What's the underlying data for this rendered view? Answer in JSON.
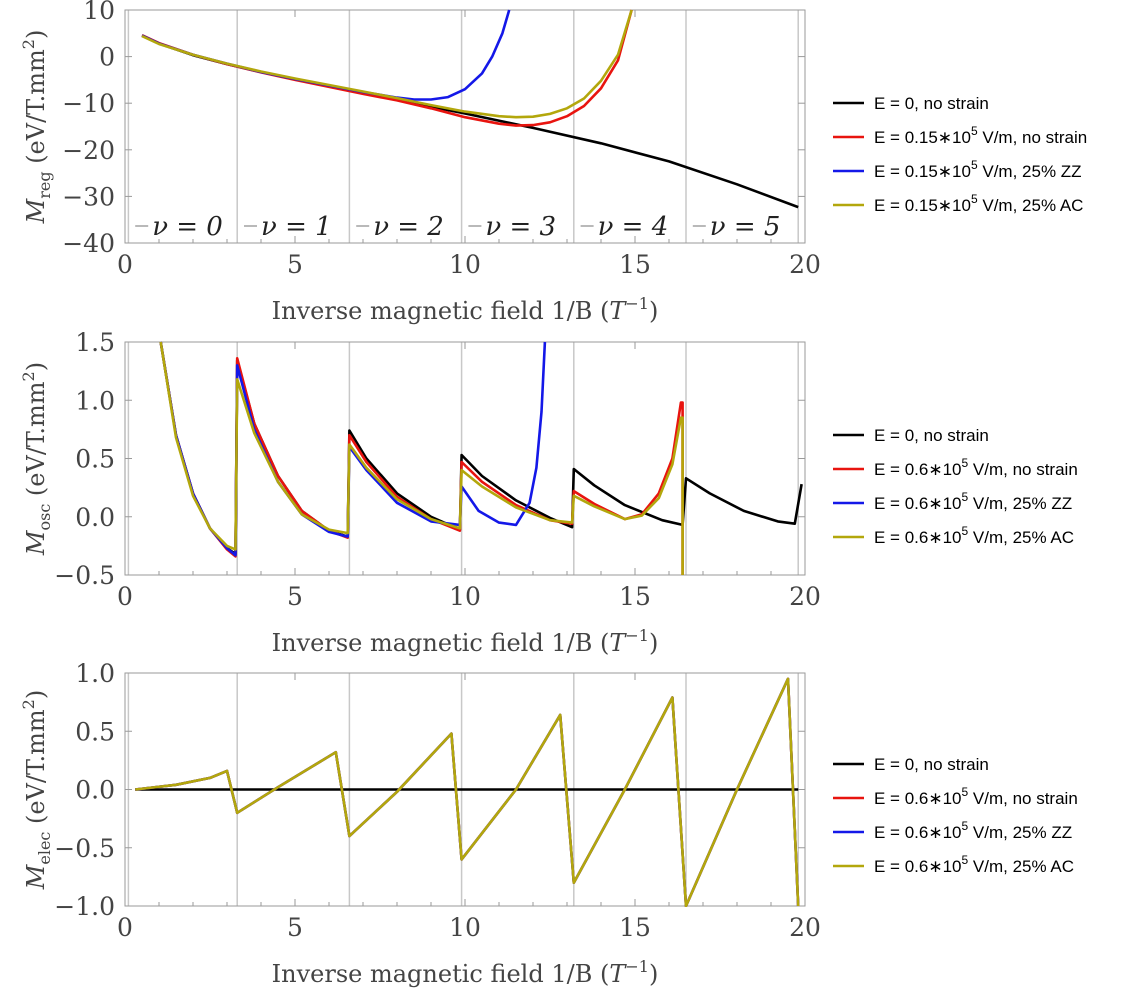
{
  "chart_data": [
    {
      "type": "line",
      "panel": "top",
      "xlabel": "Inverse magnetic field 1/B (",
      "xlabel_sym": "T",
      "xlabel_sup": "−1",
      "xlabel_close": ")",
      "ylabel_sym": "M",
      "ylabel_sub": "reg",
      "ylabel_unit": "(eV/T.mm",
      "ylabel_sup": "2",
      "ylabel_close": ")",
      "xlim": [
        0,
        20
      ],
      "ylim": [
        -40,
        10
      ],
      "xticks": [
        "0",
        "5",
        "10",
        "15",
        "20"
      ],
      "yticks": [
        "10",
        "0",
        "−10",
        "−20",
        "−30",
        "−40"
      ],
      "ytick_values": [
        10,
        0,
        -10,
        -20,
        -30,
        -40
      ],
      "xtick_values": [
        0,
        5,
        10,
        15,
        20
      ],
      "vlines": [
        0.1,
        3.3,
        6.6,
        9.9,
        13.2,
        16.5,
        19.8
      ],
      "nu_labels": [
        {
          "text": "ν = 0",
          "x": 0.3
        },
        {
          "text": "ν = 1",
          "x": 3.5
        },
        {
          "text": "ν = 2",
          "x": 6.8
        },
        {
          "text": "ν = 3",
          "x": 10.1
        },
        {
          "text": "ν = 4",
          "x": 13.4
        },
        {
          "text": "ν = 5",
          "x": 16.7
        }
      ],
      "legend": {
        "placement": "right",
        "entries": [
          {
            "pre": "E = 0, no strain",
            "sup": "",
            "post": "",
            "color": "#000000"
          },
          {
            "pre": "E = 0.15∗10",
            "sup": "5",
            "post": " V/m, no strain",
            "color": "#e8140f"
          },
          {
            "pre": "E = 0.15∗10",
            "sup": "5",
            "post": " V/m, 25% ZZ",
            "color": "#1418e8"
          },
          {
            "pre": "E = 0.15∗10",
            "sup": "5",
            "post": " V/m, 25% AC",
            "color": "#b3a70c"
          }
        ]
      },
      "series": [
        {
          "color": "#000000",
          "x": [
            0.5,
            1,
            2,
            3,
            4,
            5,
            6,
            8,
            10,
            12,
            14,
            16,
            18,
            19.8
          ],
          "y": [
            4.5,
            2.8,
            0.3,
            -1.6,
            -3.3,
            -4.8,
            -6.3,
            -9.3,
            -12.2,
            -15.3,
            -18.6,
            -22.5,
            -27.4,
            -32.3
          ]
        },
        {
          "color": "#e8140f",
          "x": [
            0.5,
            1,
            2,
            3,
            4,
            5,
            6,
            7,
            8,
            9,
            10,
            11,
            11.5,
            12,
            12.5,
            13,
            13.5,
            14,
            14.5,
            14.9
          ],
          "y": [
            4.6,
            2.9,
            0.4,
            -1.6,
            -3.4,
            -5,
            -6.5,
            -8,
            -9.4,
            -11.1,
            -13,
            -14.4,
            -14.8,
            -14.7,
            -14.1,
            -12.8,
            -10.6,
            -6.8,
            -0.8,
            10
          ]
        },
        {
          "color": "#1418e8",
          "x": [
            0.5,
            1,
            2,
            3,
            4,
            5,
            6,
            7,
            8,
            8.5,
            9,
            9.5,
            10,
            10.5,
            10.8,
            11.1,
            11.3
          ],
          "y": [
            4.5,
            2.8,
            0.4,
            -1.5,
            -3.3,
            -4.8,
            -6.2,
            -7.6,
            -8.8,
            -9.2,
            -9.2,
            -8.7,
            -7,
            -3.6,
            0,
            5,
            10
          ]
        },
        {
          "color": "#b3a70c",
          "x": [
            0.5,
            1,
            2,
            3,
            4,
            5,
            6,
            7,
            8,
            9,
            10,
            11,
            11.5,
            12,
            12.5,
            13,
            13.5,
            14,
            14.5,
            14.9
          ],
          "y": [
            4.4,
            2.7,
            0.4,
            -1.5,
            -3.2,
            -4.7,
            -6.1,
            -7.5,
            -8.9,
            -10.4,
            -11.8,
            -12.8,
            -13,
            -12.9,
            -12.3,
            -11.1,
            -9,
            -5.2,
            0.4,
            10
          ]
        }
      ]
    },
    {
      "type": "line",
      "panel": "middle",
      "xlabel": "Inverse magnetic field 1/B (",
      "xlabel_sym": "T",
      "xlabel_sup": "−1",
      "xlabel_close": ")",
      "ylabel_sym": "M",
      "ylabel_sub": "osc",
      "ylabel_unit": "(eV/T.mm",
      "ylabel_sup": "2",
      "ylabel_close": ")",
      "xlim": [
        0,
        20
      ],
      "ylim": [
        -0.5,
        1.5
      ],
      "xticks": [
        "0",
        "5",
        "10",
        "15",
        "20"
      ],
      "yticks": [
        "1.5",
        "1.0",
        "0.5",
        "0.0",
        "−0.5"
      ],
      "ytick_values": [
        1.5,
        1.0,
        0.5,
        0.0,
        -0.5
      ],
      "xtick_values": [
        0,
        5,
        10,
        15,
        20
      ],
      "vlines": [
        0.1,
        3.3,
        6.6,
        9.9,
        13.2,
        16.5,
        19.8
      ],
      "legend": {
        "placement": "right",
        "entries": [
          {
            "pre": "E = 0, no strain",
            "sup": "",
            "post": "",
            "color": "#000000"
          },
          {
            "pre": "E = 0.6∗10",
            "sup": "5",
            "post": " V/m, no strain",
            "color": "#e8140f"
          },
          {
            "pre": "E = 0.6∗10",
            "sup": "5",
            "post": " V/m, 25% ZZ",
            "color": "#1418e8"
          },
          {
            "pre": "E = 0.6∗10",
            "sup": "5",
            "post": " V/m, 25% AC",
            "color": "#b3a70c"
          }
        ]
      },
      "series": [
        {
          "color": "#000000",
          "x": [
            1.05,
            1.5,
            2,
            2.5,
            3,
            3.25,
            3.3,
            3.8,
            4.5,
            5.2,
            6,
            6.55,
            6.6,
            7.1,
            8,
            9,
            9.85,
            9.9,
            10.5,
            11.5,
            12.5,
            13.15,
            13.2,
            13.8,
            14.7,
            15.8,
            16.4,
            16.5,
            17.2,
            18.2,
            19.2,
            19.7,
            19.9
          ],
          "y": [
            1.5,
            0.7,
            0.2,
            -0.1,
            -0.27,
            -0.32,
            1.34,
            0.8,
            0.35,
            0.05,
            -0.12,
            -0.17,
            0.74,
            0.5,
            0.2,
            0,
            -0.11,
            0.53,
            0.35,
            0.14,
            -0.01,
            -0.09,
            0.41,
            0.27,
            0.1,
            -0.03,
            -0.07,
            0.33,
            0.2,
            0.05,
            -0.04,
            -0.06,
            0.28
          ]
        },
        {
          "color": "#e8140f",
          "x": [
            1.05,
            1.5,
            2,
            2.5,
            3,
            3.25,
            3.3,
            3.8,
            4.5,
            5.2,
            6,
            6.55,
            6.6,
            7.1,
            8,
            9,
            9.85,
            9.9,
            10.5,
            11.5,
            12.5,
            13.15,
            13.2,
            13.8,
            14.7,
            15.2,
            15.7,
            16.1,
            16.35,
            16.4,
            16.4
          ],
          "y": [
            1.5,
            0.7,
            0.2,
            -0.1,
            -0.28,
            -0.34,
            1.36,
            0.8,
            0.35,
            0.05,
            -0.12,
            -0.18,
            0.7,
            0.47,
            0.17,
            -0.02,
            -0.12,
            0.47,
            0.3,
            0.1,
            -0.03,
            -0.06,
            0.22,
            0.11,
            -0.02,
            0.02,
            0.2,
            0.5,
            0.98,
            0.98,
            -0.5
          ]
        },
        {
          "color": "#1418e8",
          "x": [
            1.05,
            1.5,
            2,
            2.5,
            3,
            3.25,
            3.3,
            3.8,
            4.5,
            5.2,
            6,
            6.55,
            6.6,
            7.1,
            8,
            9,
            9.85,
            9.9,
            10.4,
            11,
            11.5,
            11.9,
            12.1,
            12.25,
            12.35
          ],
          "y": [
            1.5,
            0.7,
            0.2,
            -0.1,
            -0.27,
            -0.33,
            1.3,
            0.75,
            0.3,
            0.02,
            -0.13,
            -0.17,
            0.6,
            0.4,
            0.12,
            -0.04,
            -0.07,
            0.26,
            0.05,
            -0.05,
            -0.07,
            0.12,
            0.42,
            0.9,
            1.5
          ]
        },
        {
          "color": "#b3a70c",
          "x": [
            1.05,
            1.5,
            2,
            2.5,
            3,
            3.25,
            3.3,
            3.8,
            4.5,
            5.2,
            6,
            6.55,
            6.6,
            7.1,
            8,
            9,
            9.85,
            9.9,
            10.5,
            11.5,
            12.5,
            13.15,
            13.2,
            13.8,
            14.7,
            15.2,
            15.7,
            16.1,
            16.35,
            16.4,
            16.4
          ],
          "y": [
            1.5,
            0.68,
            0.18,
            -0.1,
            -0.25,
            -0.28,
            1.18,
            0.72,
            0.3,
            0.02,
            -0.11,
            -0.14,
            0.62,
            0.42,
            0.15,
            -0.02,
            -0.1,
            0.4,
            0.26,
            0.08,
            -0.03,
            -0.05,
            0.18,
            0.09,
            -0.02,
            0.01,
            0.16,
            0.45,
            0.85,
            0.85,
            -0.5
          ]
        }
      ]
    },
    {
      "type": "line",
      "panel": "bottom",
      "xlabel": "Inverse magnetic field 1/B (",
      "xlabel_sym": "T",
      "xlabel_sup": "−1",
      "xlabel_close": ")",
      "ylabel_sym": "M",
      "ylabel_sub": "elec",
      "ylabel_unit": "(eV/T.mm",
      "ylabel_sup": "2",
      "ylabel_close": ")",
      "xlim": [
        0,
        20
      ],
      "ylim": [
        -1.0,
        1.0
      ],
      "xticks": [
        "0",
        "5",
        "10",
        "15",
        "20"
      ],
      "yticks": [
        "1.0",
        "0.5",
        "0.0",
        "−0.5",
        "−1.0"
      ],
      "ytick_values": [
        1.0,
        0.5,
        0.0,
        -0.5,
        -1.0
      ],
      "xtick_values": [
        0,
        5,
        10,
        15,
        20
      ],
      "vlines": [
        0.1,
        3.3,
        6.6,
        9.9,
        13.2,
        16.5,
        19.8
      ],
      "legend": {
        "placement": "right",
        "entries": [
          {
            "pre": "E = 0, no strain",
            "sup": "",
            "post": "",
            "color": "#000000"
          },
          {
            "pre": "E = 0.6∗10",
            "sup": "5",
            "post": " V/m, no strain",
            "color": "#e8140f"
          },
          {
            "pre": "E = 0.6∗10",
            "sup": "5",
            "post": " V/m, 25% ZZ",
            "color": "#1418e8"
          },
          {
            "pre": "E = 0.6∗10",
            "sup": "5",
            "post": " V/m, 25% AC",
            "color": "#b3a70c"
          }
        ]
      },
      "series": [
        {
          "color": "#000000",
          "x": [
            0.3,
            19.8
          ],
          "y": [
            0,
            0
          ]
        },
        {
          "color": "#e8140f",
          "x": [
            0.3,
            1.5,
            2.5,
            3.0,
            3.3,
            4.5,
            6.2,
            6.6,
            8.0,
            9.6,
            9.9,
            11.5,
            12.8,
            13.2,
            14.7,
            16.1,
            16.5,
            18.0,
            19.5,
            19.8
          ],
          "y": [
            0,
            0.04,
            0.1,
            0.16,
            -0.2,
            0.02,
            0.32,
            -0.4,
            -0.02,
            0.48,
            -0.6,
            0.0,
            0.64,
            -0.8,
            0.0,
            0.79,
            -1.0,
            0.0,
            0.95,
            -1.0
          ]
        },
        {
          "color": "#1418e8",
          "x": [
            0.3,
            1.5,
            2.5,
            3.0,
            3.3,
            4.5,
            6.2,
            6.6,
            8.0,
            9.6,
            9.9,
            11.5,
            12.8,
            13.2,
            14.7,
            16.1,
            16.5,
            18.0,
            19.5,
            19.8
          ],
          "y": [
            0,
            0.04,
            0.1,
            0.16,
            -0.2,
            0.02,
            0.32,
            -0.4,
            -0.02,
            0.48,
            -0.6,
            0.0,
            0.64,
            -0.8,
            0.0,
            0.79,
            -1.0,
            0.0,
            0.95,
            -1.0
          ]
        },
        {
          "color": "#b3a70c",
          "x": [
            0.3,
            1.5,
            2.5,
            3.0,
            3.3,
            4.5,
            6.2,
            6.6,
            8.0,
            9.6,
            9.9,
            11.5,
            12.8,
            13.2,
            14.7,
            16.1,
            16.5,
            18.0,
            19.5,
            19.8
          ],
          "y": [
            0,
            0.04,
            0.1,
            0.16,
            -0.2,
            0.02,
            0.32,
            -0.4,
            -0.02,
            0.48,
            -0.6,
            0.0,
            0.64,
            -0.8,
            0.0,
            0.79,
            -1.0,
            0.0,
            0.95,
            -1.0
          ]
        }
      ]
    }
  ]
}
